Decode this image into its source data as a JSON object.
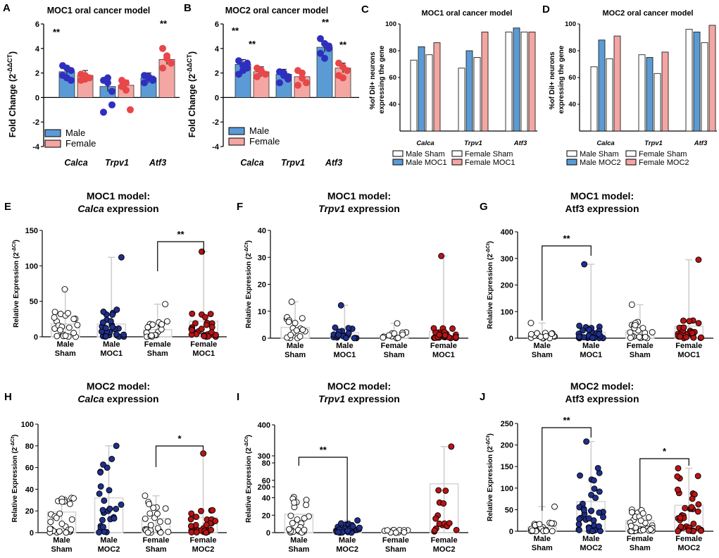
{
  "colors": {
    "male_fill": "#5b9bd5",
    "female_fill": "#f4a6a2",
    "male_dot": "#2f2fbf",
    "female_dot": "#e8474a",
    "moc_male": "#1f2f8a",
    "moc_female": "#b81414",
    "sham_dot": "#ffffff",
    "box": "#d6d6d6"
  },
  "panels": {
    "A": {
      "letter": "A",
      "title": "MOC1 oral cancer model",
      "ylabel": "Fold Change (2",
      "ylabel_sup": "-ΔΔCT",
      "yticks": [
        "6",
        "4",
        "2",
        "0",
        "-2",
        "-4"
      ],
      "categories": [
        "Calca",
        "Trpv1",
        "Atf3"
      ],
      "legend": [
        "Male",
        "Female"
      ],
      "sig": [
        "**",
        "**"
      ]
    },
    "B": {
      "letter": "B",
      "title": "MOC2 oral cancer model",
      "ylabel": "Fold Change (2",
      "ylabel_sup": "-ΔΔCT",
      "yticks": [
        "6",
        "4",
        "2",
        "0",
        "-2",
        "-4"
      ],
      "categories": [
        "Calca",
        "Trpv1",
        "Atf3"
      ],
      "legend": [
        "Male",
        "Female"
      ],
      "sig": [
        "**",
        "**",
        "**",
        "**"
      ]
    },
    "C": {
      "letter": "C",
      "title": "MOC1 oral cancer model",
      "ylabel": [
        "%of DiI+ neurons",
        "expressing the gene"
      ],
      "yticks": [
        "100",
        "80",
        "60",
        "40"
      ],
      "categories": [
        "Calca",
        "Trpv1",
        "Atf3"
      ],
      "legend": [
        "Male Sham",
        "Female Sham",
        "Male MOC1",
        "Female MOC1"
      ]
    },
    "D": {
      "letter": "D",
      "title": "MOC2 oral cancer model",
      "ylabel": [
        "%of DiI+ neurons",
        "expressing the gene"
      ],
      "yticks": [
        "100",
        "80",
        "60",
        "40"
      ],
      "categories": [
        "Calca",
        "Trpv1",
        "Atf3"
      ],
      "legend": [
        "Male Sham",
        "Female Sham",
        "Male MOC2",
        "Female MOC2"
      ]
    },
    "E": {
      "letter": "E",
      "title1": "MOC1 model:",
      "title2_i": "Calca",
      "title2": " expression",
      "ylabel": "Relative Expression (2",
      "ylabel_sup": "-ΔCt",
      "yticks": [
        "150",
        "100",
        "50",
        "0"
      ],
      "groups": [
        "Male",
        "Sham",
        "Male",
        "MOC1",
        "Female",
        "Sham",
        "Female",
        "MOC1"
      ],
      "sig": "**"
    },
    "F": {
      "letter": "F",
      "title1": "MOC1 model:",
      "title2_i": "Trpv1",
      "title2": " expression",
      "ylabel": "Relative Expression (2",
      "ylabel_sup": "-ΔCt",
      "yticks": [
        "40",
        "30",
        "20",
        "10",
        "0"
      ],
      "groups": [
        "Male",
        "Sham",
        "Male",
        "MOC1",
        "Female",
        "Sham",
        "Female",
        "MOC1"
      ]
    },
    "G": {
      "letter": "G",
      "title1": "MOC1 model:",
      "title2_i": "",
      "title2": "Atf3 expression",
      "ylabel": "Relative Expression (2",
      "ylabel_sup": "-ΔCt",
      "yticks": [
        "400",
        "300",
        "200",
        "100",
        "0"
      ],
      "groups": [
        "Male",
        "Sham",
        "Male",
        "MOC1",
        "Female",
        "Sham",
        "Female",
        "MOC1"
      ],
      "sig": "**"
    },
    "H": {
      "letter": "H",
      "title1": "MOC2 model:",
      "title2_i": "Calca",
      "title2": " expression",
      "ylabel": "Relative Expression (2",
      "ylabel_sup": "-ΔCt",
      "yticks": [
        "100",
        "80",
        "60",
        "40",
        "20",
        "0"
      ],
      "groups": [
        "Male",
        "Sham",
        "Male",
        "MOC2",
        "Female",
        "Sham",
        "Female",
        "MOC2"
      ],
      "sig": "*"
    },
    "I": {
      "letter": "I",
      "title1": "MOC2 model:",
      "title2_i": "Trpv1",
      "title2": " expression",
      "ylabel": "Relative Expression (2",
      "ylabel_sup": "-ΔCt",
      "yticks": [
        "400",
        "300",
        "200",
        "80",
        "60",
        "40",
        "20",
        "0"
      ],
      "groups": [
        "Male",
        "Sham",
        "Male",
        "MOC2",
        "Female",
        "Sham",
        "Female",
        "MOC2"
      ],
      "sig": "**"
    },
    "J": {
      "letter": "J",
      "title1": "MOC2 model:",
      "title2_i": "",
      "title2": "Atf3 expression",
      "ylabel": "Relative Expression (2",
      "ylabel_sup": "-ΔCt",
      "yticks": [
        "250",
        "200",
        "150",
        "100",
        "50",
        "0"
      ],
      "groups": [
        "Male",
        "Sham",
        "Male",
        "MOC2",
        "Female",
        "Sham",
        "Female",
        "MOC2"
      ],
      "sig": [
        "**",
        "*"
      ]
    }
  },
  "chart_data": [
    {
      "panel": "A",
      "type": "bar",
      "title": "MOC1 oral cancer model",
      "ylabel": "Fold Change (2^-ΔΔCT)",
      "ylim": [
        -4,
        6
      ],
      "categories": [
        "Calca",
        "Trpv1",
        "Atf3"
      ],
      "series": [
        {
          "name": "Male",
          "values": [
            2.1,
            0.9,
            1.6
          ],
          "points": [
            [
              2.6,
              2.4,
              2.2,
              1.8,
              1.6,
              1.4
            ],
            [
              1.4,
              1.2,
              -0.6,
              -1.2,
              1.6,
              0.5
            ],
            [
              1.8,
              1.6,
              1.4,
              1.2,
              1.7,
              1.5
            ]
          ]
        },
        {
          "name": "Female",
          "values": [
            1.8,
            1.0,
            3.1
          ],
          "points": [
            [
              1.9,
              1.8,
              1.6,
              1.4,
              1.5
            ],
            [
              1.4,
              1.2,
              -1.0,
              0.9,
              0.6
            ],
            [
              4.0,
              3.2,
              2.8,
              2.4,
              3.4
            ]
          ]
        }
      ]
    },
    {
      "panel": "B",
      "type": "bar",
      "title": "MOC2 oral cancer model",
      "ylabel": "Fold Change (2^-ΔΔCT)",
      "ylim": [
        -4,
        6
      ],
      "categories": [
        "Calca",
        "Trpv1",
        "Atf3"
      ],
      "series": [
        {
          "name": "Male",
          "values": [
            2.7,
            1.9,
            4.1
          ],
          "points": [
            [
              3.0,
              2.6,
              2.4,
              1.9,
              2.2,
              2.8
            ],
            [
              2.1,
              1.8,
              1.5,
              1.2,
              2.0,
              1.7
            ],
            [
              4.8,
              4.4,
              4.0,
              3.6,
              3.2,
              4.2
            ]
          ]
        },
        {
          "name": "Female",
          "values": [
            2.1,
            1.7,
            2.4
          ],
          "points": [
            [
              2.4,
              2.1,
              1.9,
              1.7,
              2.2
            ],
            [
              2.2,
              1.6,
              1.2,
              1.0,
              2.0
            ],
            [
              2.8,
              2.5,
              2.2,
              1.8,
              1.6
            ]
          ]
        }
      ]
    },
    {
      "panel": "C",
      "type": "bar",
      "title": "MOC1 oral cancer model",
      "ylabel": "%of DiI+ neurons expressing the gene",
      "ylim": [
        20,
        100
      ],
      "categories": [
        "Calca",
        "Trpv1",
        "Atf3"
      ],
      "series": [
        {
          "name": "Male Sham",
          "values": [
            73,
            67,
            94
          ]
        },
        {
          "name": "Male MOC1",
          "values": [
            83,
            80,
            97
          ]
        },
        {
          "name": "Female Sham",
          "values": [
            77,
            75,
            94
          ]
        },
        {
          "name": "Female MOC1",
          "values": [
            86,
            94,
            94
          ]
        }
      ]
    },
    {
      "panel": "D",
      "type": "bar",
      "title": "MOC2 oral cancer model",
      "ylabel": "%of DiI+ neurons expressing the gene",
      "ylim": [
        20,
        100
      ],
      "categories": [
        "Calca",
        "Trpv1",
        "Atf3"
      ],
      "series": [
        {
          "name": "Male Sham",
          "values": [
            68,
            77,
            96
          ]
        },
        {
          "name": "Male MOC2",
          "values": [
            88,
            75,
            94
          ]
        },
        {
          "name": "Female Sham",
          "values": [
            74,
            63,
            86
          ]
        },
        {
          "name": "Female MOC2",
          "values": [
            91,
            79,
            99
          ]
        }
      ]
    },
    {
      "panel": "E",
      "type": "scatter",
      "title": "MOC1 model: Calca expression",
      "ylim": [
        0,
        150
      ],
      "categories": [
        "Male Sham",
        "Male MOC1",
        "Female Sham",
        "Female MOC1"
      ],
      "values": [
        18,
        18,
        10,
        22
      ],
      "max": [
        67,
        112,
        46,
        120
      ]
    },
    {
      "panel": "F",
      "type": "scatter",
      "title": "MOC1 model: Trpv1 expression",
      "ylim": [
        0,
        40
      ],
      "categories": [
        "Male Sham",
        "Male MOC1",
        "Female Sham",
        "Female MOC1"
      ],
      "values": [
        4,
        2,
        1,
        2.5
      ],
      "max": [
        13.5,
        12.2,
        5.5,
        30.5
      ]
    },
    {
      "panel": "G",
      "type": "scatter",
      "title": "MOC1 model: Atf3 expression",
      "ylim": [
        0,
        400
      ],
      "categories": [
        "Male Sham",
        "Male MOC1",
        "Female Sham",
        "Female MOC1"
      ],
      "values": [
        10,
        22,
        28,
        45
      ],
      "max": [
        57,
        278,
        126,
        295
      ]
    },
    {
      "panel": "H",
      "type": "scatter",
      "title": "MOC2 model: Calca expression",
      "ylim": [
        0,
        100
      ],
      "categories": [
        "Male Sham",
        "Male MOC2",
        "Female Sham",
        "Female MOC2"
      ],
      "values": [
        19,
        32,
        13,
        14
      ],
      "max": [
        32,
        80,
        34,
        73
      ]
    },
    {
      "panel": "I",
      "type": "scatter",
      "title": "MOC2 model: Trpv1 expression",
      "ylim": [
        0,
        400
      ],
      "categories": [
        "Male Sham",
        "Male MOC2",
        "Female Sham",
        "Female MOC2"
      ],
      "values": [
        21,
        5,
        2,
        56
      ],
      "max": [
        82,
        14,
        3,
        330
      ]
    },
    {
      "panel": "J",
      "type": "scatter",
      "title": "MOC2 model: Atf3 expression",
      "ylim": [
        0,
        250
      ],
      "categories": [
        "Male Sham",
        "Male MOC2",
        "Female Sham",
        "Female MOC2"
      ],
      "values": [
        10,
        69,
        25,
        60
      ],
      "max": [
        57,
        208,
        50,
        146
      ]
    }
  ]
}
